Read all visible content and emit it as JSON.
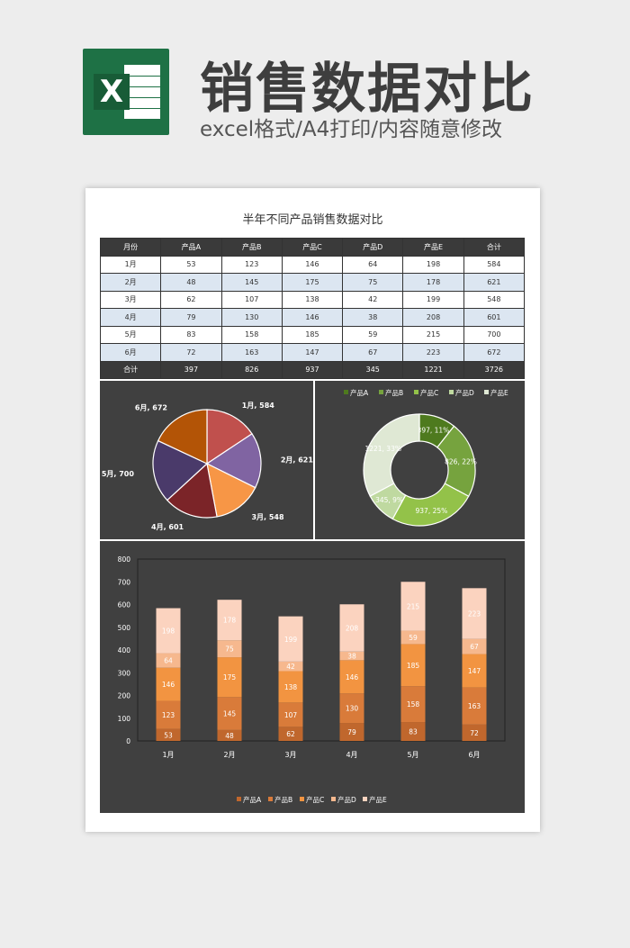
{
  "header": {
    "title": "销售数据对比",
    "subtitle": "excel格式/A4打印/内容随意修改",
    "logo_letter": "X"
  },
  "sheet": {
    "title": "半年不同产品销售数据对比"
  },
  "table": {
    "headers": [
      "月份",
      "产品A",
      "产品B",
      "产品C",
      "产品D",
      "产品E",
      "合计"
    ],
    "rows": [
      [
        "1月",
        "53",
        "123",
        "146",
        "64",
        "198",
        "584"
      ],
      [
        "2月",
        "48",
        "145",
        "175",
        "75",
        "178",
        "621"
      ],
      [
        "3月",
        "62",
        "107",
        "138",
        "42",
        "199",
        "548"
      ],
      [
        "4月",
        "79",
        "130",
        "146",
        "38",
        "208",
        "601"
      ],
      [
        "5月",
        "83",
        "158",
        "185",
        "59",
        "215",
        "700"
      ],
      [
        "6月",
        "72",
        "163",
        "147",
        "67",
        "223",
        "672"
      ]
    ],
    "footer": [
      "合计",
      "397",
      "826",
      "937",
      "345",
      "1221",
      "3726"
    ]
  },
  "colors": {
    "pie": [
      "#c0504d",
      "#8064a2",
      "#f79646",
      "#7b2428",
      "#4a3a6a",
      "#b35406"
    ],
    "donut": [
      "#4e7a1e",
      "#76a33e",
      "#93c249",
      "#bfd9a0",
      "#dfe8d4"
    ],
    "bars": [
      "#c0672d",
      "#d97b3a",
      "#f29441",
      "#f6b88e",
      "#fbd3bf"
    ]
  },
  "chart_data": [
    {
      "type": "pie",
      "categories": [
        "1月",
        "2月",
        "3月",
        "4月",
        "5月",
        "6月"
      ],
      "values": [
        584,
        621,
        548,
        601,
        700,
        672
      ],
      "labels": [
        "1月, 584",
        "2月, 621",
        "3月, 548",
        "4月, 601",
        "5月, 700",
        "6月, 672"
      ]
    },
    {
      "type": "pie",
      "variant": "donut",
      "categories": [
        "产品A",
        "产品B",
        "产品C",
        "产品D",
        "产品E"
      ],
      "values": [
        397,
        826,
        937,
        345,
        1221
      ],
      "labels": [
        "397, 11%",
        "826, 22%",
        "937, 25%",
        "345, 9%",
        "1221, 33%"
      ],
      "legend": "top"
    },
    {
      "type": "bar",
      "stacked": true,
      "categories": [
        "1月",
        "2月",
        "3月",
        "4月",
        "5月",
        "6月"
      ],
      "series": [
        {
          "name": "产品A",
          "values": [
            53,
            48,
            62,
            79,
            83,
            72
          ]
        },
        {
          "name": "产品B",
          "values": [
            123,
            145,
            107,
            130,
            158,
            163
          ]
        },
        {
          "name": "产品C",
          "values": [
            146,
            175,
            138,
            146,
            185,
            147
          ]
        },
        {
          "name": "产品D",
          "values": [
            64,
            75,
            42,
            38,
            59,
            67
          ]
        },
        {
          "name": "产品E",
          "values": [
            198,
            178,
            199,
            208,
            215,
            223
          ]
        }
      ],
      "ylim": [
        0,
        800
      ],
      "yticks": [
        "0",
        "100",
        "200",
        "300",
        "400",
        "500",
        "600",
        "700",
        "800"
      ],
      "legend": "bottom",
      "grid": false
    }
  ]
}
